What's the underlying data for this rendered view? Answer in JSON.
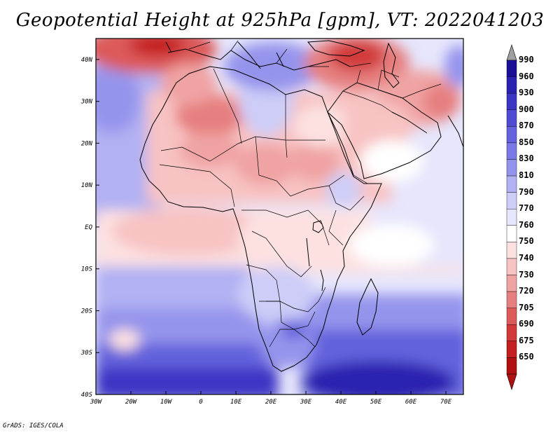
{
  "title": "Geopotential Height at 925hPa [gpm], VT: 2022041203",
  "credit": "GrADS: IGES/COLA",
  "map": {
    "lon_ticks": [
      "30W",
      "20W",
      "10W",
      "0",
      "10E",
      "20E",
      "30E",
      "40E",
      "50E",
      "60E",
      "70E"
    ],
    "lat_ticks": [
      "40N",
      "30N",
      "20N",
      "10N",
      "EQ",
      "10S",
      "20S",
      "30S",
      "40S"
    ],
    "lon_range": [
      -30,
      75
    ],
    "lat_range": [
      -40,
      45
    ]
  },
  "colorbar": {
    "levels": [
      "990",
      "960",
      "930",
      "900",
      "870",
      "850",
      "830",
      "810",
      "790",
      "770",
      "760",
      "750",
      "740",
      "730",
      "720",
      "705",
      "690",
      "675",
      "650"
    ],
    "colors": [
      "#1a0f96",
      "#2a22b0",
      "#3c36c4",
      "#4f4bd2",
      "#6462dc",
      "#7b7ae4",
      "#9594ec",
      "#b1b1f3",
      "#cdcdf8",
      "#e6e6fc",
      "#ffffff",
      "#fde1e1",
      "#f8c3c3",
      "#f0a3a3",
      "#e67f7f",
      "#dc5a5a",
      "#d23a3a",
      "#c41f1f",
      "#b01010"
    ],
    "top_arrow_color": "#a0a0a0",
    "bottom_arrow_color": "#b01010"
  }
}
